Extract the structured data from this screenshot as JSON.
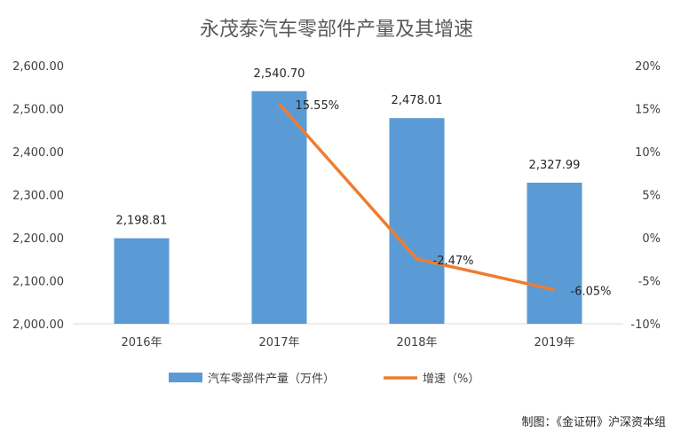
{
  "chart_data": {
    "type": "bar",
    "title": "永茂泰汽车零部件产量及其增速",
    "categories": [
      "2016年",
      "2017年",
      "2018年",
      "2019年"
    ],
    "series": [
      {
        "name": "汽车零部件产量（万件）",
        "type": "bar",
        "axis": "left",
        "color": "#5B9BD5",
        "values": [
          2198.81,
          2540.7,
          2478.01,
          2327.99
        ],
        "labels": [
          "2,198.81",
          "2,540.70",
          "2,478.01",
          "2,327.99"
        ]
      },
      {
        "name": "增速（%）",
        "type": "line",
        "axis": "right",
        "color": "#ED7D31",
        "values": [
          null,
          15.55,
          -2.47,
          -6.05
        ],
        "labels": [
          "",
          "15.55%",
          "-2.47%",
          "-6.05%"
        ]
      }
    ],
    "ylim_left": [
      2000,
      2600
    ],
    "yticks_left": [
      "2,000.00",
      "2,100.00",
      "2,200.00",
      "2,300.00",
      "2,400.00",
      "2,500.00",
      "2,600.00"
    ],
    "ylim_right": [
      -10,
      20
    ],
    "yticks_right": [
      "-10%",
      "-5%",
      "0%",
      "5%",
      "10%",
      "15%",
      "20%"
    ],
    "legend_position": "bottom",
    "grid": false
  },
  "credit": "制图：《金证研》沪深资本组"
}
